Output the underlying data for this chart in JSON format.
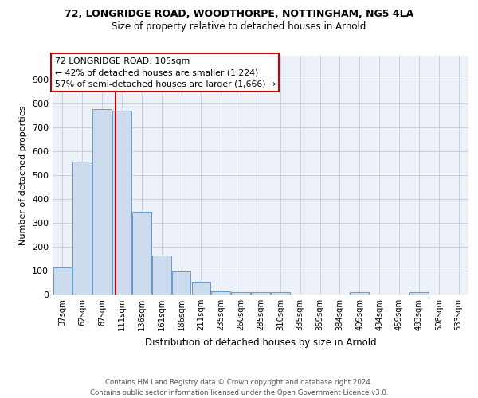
{
  "title1": "72, LONGRIDGE ROAD, WOODTHORPE, NOTTINGHAM, NG5 4LA",
  "title2": "Size of property relative to detached houses in Arnold",
  "xlabel": "Distribution of detached houses by size in Arnold",
  "ylabel": "Number of detached properties",
  "footer": "Contains HM Land Registry data © Crown copyright and database right 2024.\nContains public sector information licensed under the Open Government Licence v3.0.",
  "categories": [
    "37sqm",
    "62sqm",
    "87sqm",
    "111sqm",
    "136sqm",
    "161sqm",
    "186sqm",
    "211sqm",
    "235sqm",
    "260sqm",
    "285sqm",
    "310sqm",
    "335sqm",
    "359sqm",
    "384sqm",
    "409sqm",
    "434sqm",
    "459sqm",
    "483sqm",
    "508sqm",
    "533sqm"
  ],
  "values": [
    112,
    557,
    778,
    770,
    348,
    163,
    97,
    52,
    15,
    11,
    11,
    9,
    0,
    0,
    0,
    9,
    0,
    0,
    9,
    0,
    0
  ],
  "bar_color": "#ccdcee",
  "bar_edge_color": "#6699cc",
  "grid_color": "#c8d0de",
  "vline_x": 2.68,
  "vline_color": "#cc0000",
  "annotation_text": "72 LONGRIDGE ROAD: 105sqm\n← 42% of detached houses are smaller (1,224)\n57% of semi-detached houses are larger (1,666) →",
  "annotation_box_color": "#cc0000",
  "ylim": [
    0,
    1000
  ],
  "yticks": [
    0,
    100,
    200,
    300,
    400,
    500,
    600,
    700,
    800,
    900,
    1000
  ],
  "background_color": "#edf2f9"
}
